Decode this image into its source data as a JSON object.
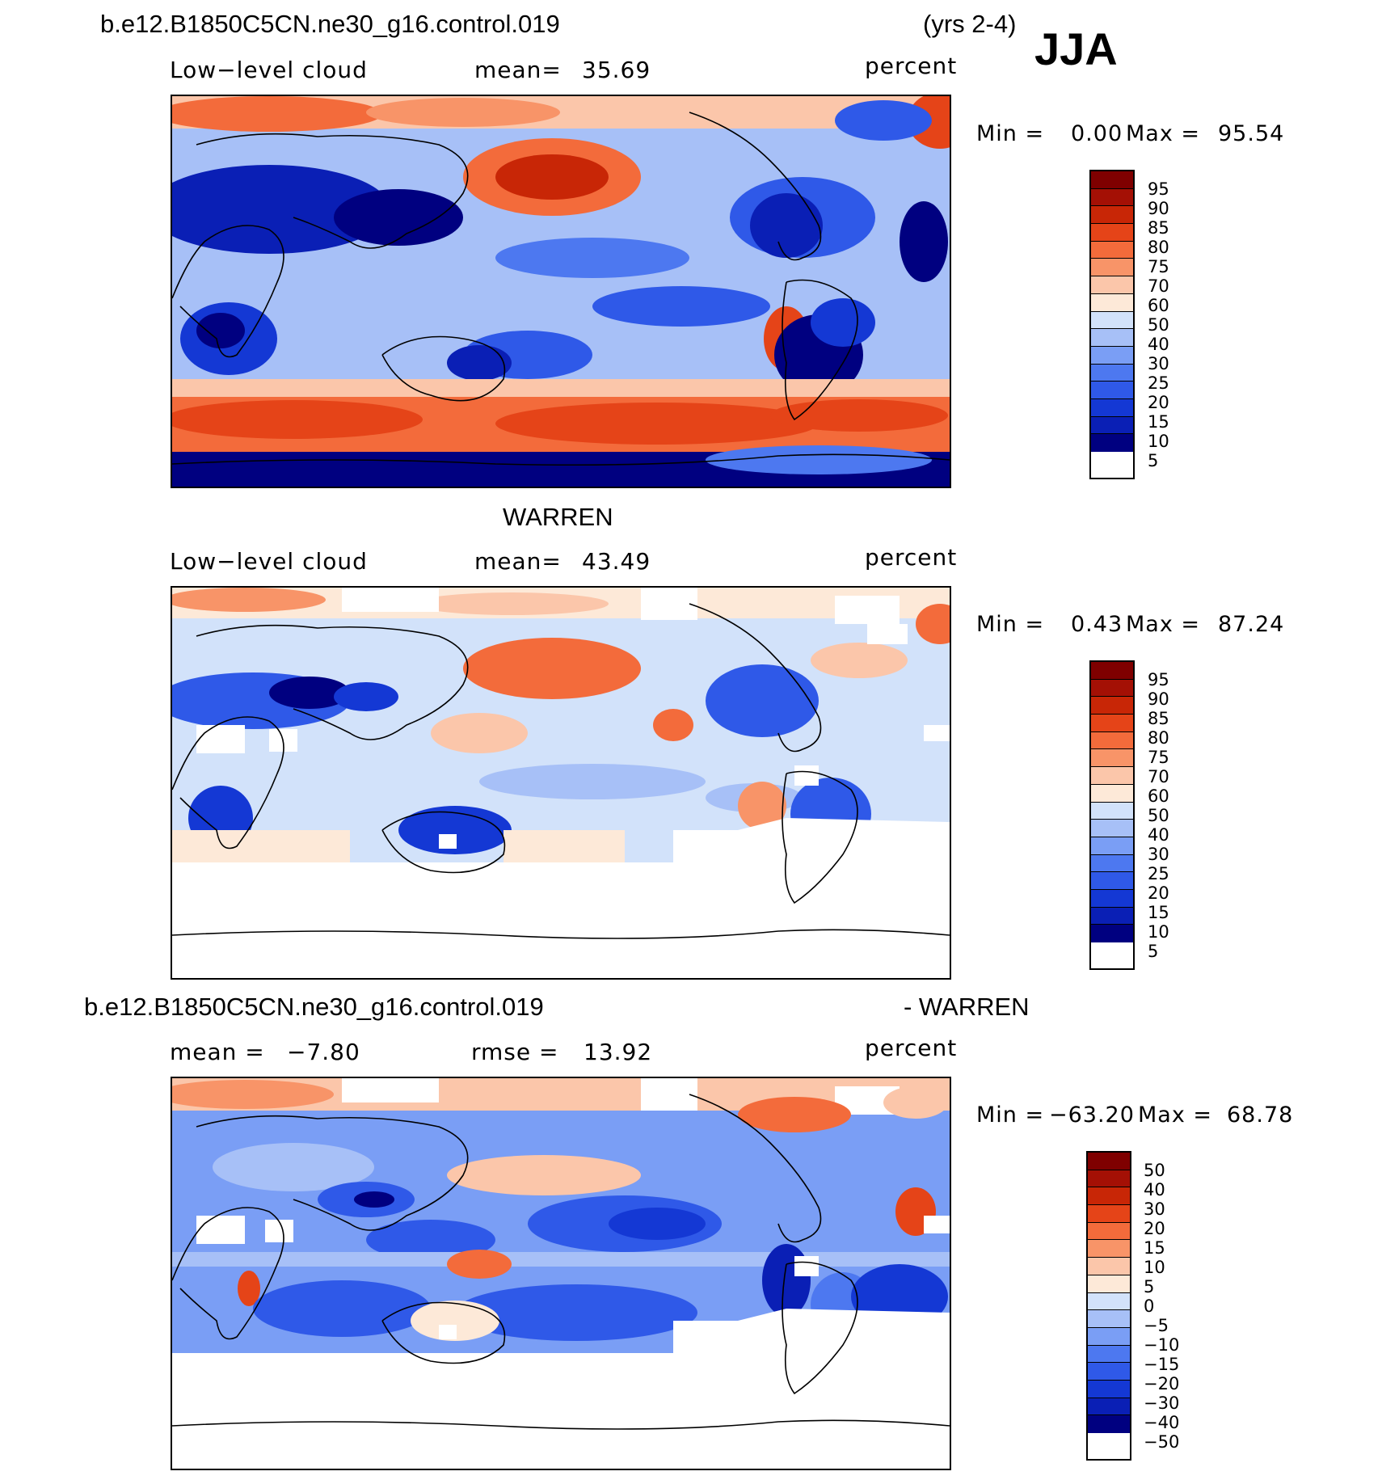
{
  "colors": {
    "seq": [
      "#000080",
      "#0a1fb5",
      "#1438d4",
      "#2f59e8",
      "#4d78f0",
      "#7a9ef5",
      "#a7c0f7",
      "#d2e2fa",
      "#fde9d8",
      "#fbc6aa",
      "#f89468",
      "#f36b3b",
      "#e54418",
      "#c82606",
      "#a41005",
      "#7f0000"
    ],
    "land": "none",
    "coast": "#000000"
  },
  "header": {
    "case_name": "b.e12.B1850C5CN.ne30_g16.control.019",
    "years": "(yrs 2-4)",
    "season": "JJA"
  },
  "panels": [
    {
      "id": "model",
      "variable": "Low−level cloud",
      "stat_label": "mean=",
      "stat_value": "35.69",
      "units": "percent",
      "min_label": "Min =",
      "min_value": "0.00",
      "max_label": "Max =",
      "max_value": "95.54",
      "colorbar_labels": [
        "95",
        "90",
        "85",
        "80",
        "75",
        "70",
        "60",
        "50",
        "40",
        "30",
        "25",
        "20",
        "15",
        "10",
        "5"
      ]
    },
    {
      "id": "obs",
      "title": "WARREN",
      "variable": "Low−level cloud",
      "stat_label": "mean=",
      "stat_value": "43.49",
      "units": "percent",
      "min_label": "Min =",
      "min_value": "0.43",
      "max_label": "Max =",
      "max_value": "87.24",
      "colorbar_labels": [
        "95",
        "90",
        "85",
        "80",
        "75",
        "70",
        "60",
        "50",
        "40",
        "30",
        "25",
        "20",
        "15",
        "10",
        "5"
      ]
    },
    {
      "id": "diff",
      "title_left": "b.e12.B1850C5CN.ne30_g16.control.019",
      "title_right": "- WARREN",
      "mean_label": "mean =",
      "mean_value": "−7.80",
      "rmse_label": "rmse =",
      "rmse_value": "13.92",
      "units": "percent",
      "min_label": "Min =",
      "min_value": "−63.20",
      "max_label": "Max =",
      "max_value": "68.78",
      "colorbar_labels": [
        "50",
        "40",
        "30",
        "20",
        "15",
        "10",
        "5",
        "0",
        "−5",
        "−10",
        "−15",
        "−20",
        "−30",
        "−40",
        "−50"
      ]
    }
  ]
}
